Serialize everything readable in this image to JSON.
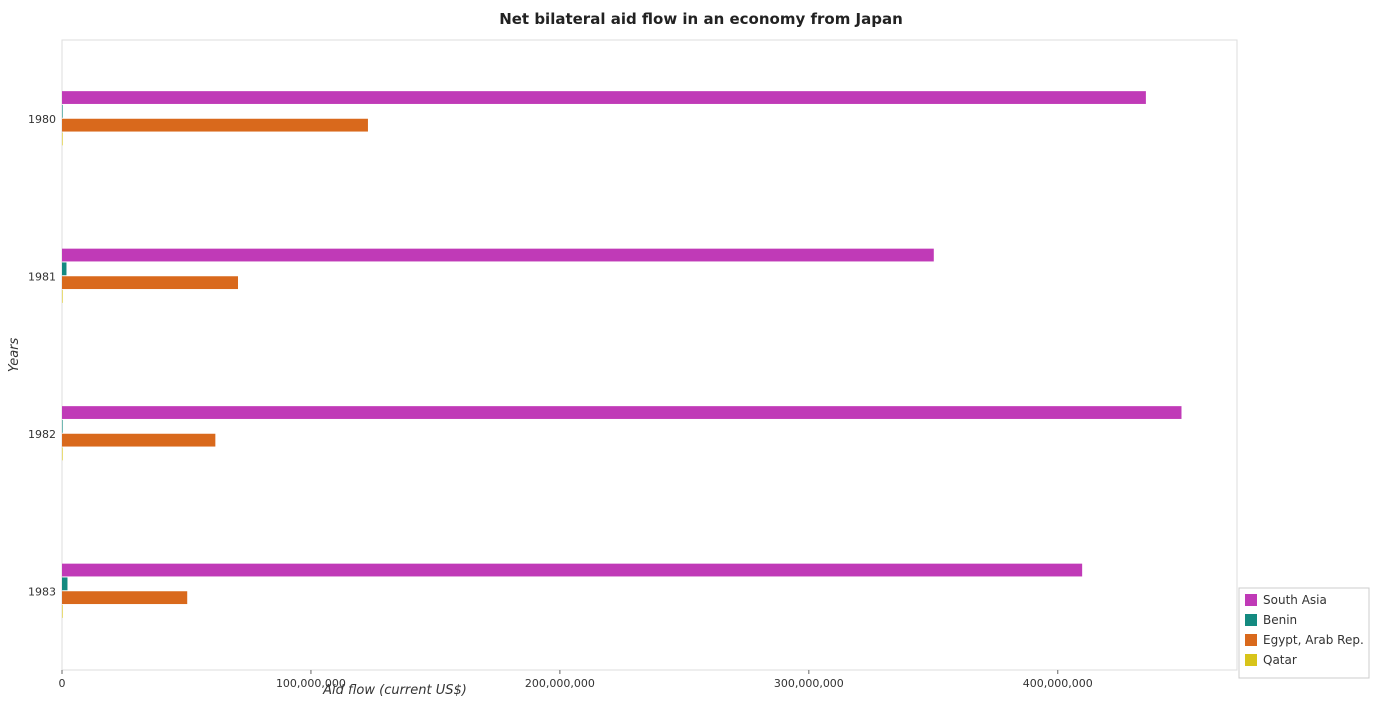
{
  "chart_data": {
    "type": "bar",
    "orientation": "horizontal",
    "title": "Net bilateral aid flow in an economy from Japan",
    "xlabel": "Aid flow (current US$)",
    "ylabel": "Years",
    "categories": [
      "1980",
      "1981",
      "1982",
      "1983"
    ],
    "series": [
      {
        "name": "South Asia",
        "color": "#c03ab7",
        "values": [
          435400000,
          350200000,
          449700000,
          409800000
        ]
      },
      {
        "name": "Benin",
        "color": "#148a80",
        "values": [
          30000,
          1800000,
          200000,
          2200000
        ]
      },
      {
        "name": "Egypt, Arab Rep.",
        "color": "#d9691c",
        "values": [
          122900000,
          70700000,
          61600000,
          50300000
        ]
      },
      {
        "name": "Qatar",
        "color": "#d8c41a",
        "values": [
          100000,
          120000,
          180000,
          60000
        ]
      }
    ],
    "xlim": [
      0,
      472000000
    ],
    "xticks": [
      0,
      100000000,
      200000000,
      300000000,
      400000000
    ],
    "xtick_labels": [
      "0",
      "100,000,000",
      "200,000,000",
      "300,000,000",
      "400,000,000"
    ],
    "grid": false,
    "legend_position": "bottom-right"
  }
}
